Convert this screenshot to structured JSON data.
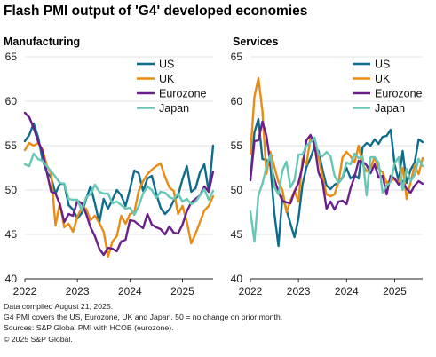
{
  "title": "Flash PMI output of 'G4' developed economies",
  "footer": [
    "Data compiled August 21, 2025.",
    "G4 PMI covers the US, Eurozone, UK and Japan. 50 = no change on prior month.",
    "Sources: S&P Global PMI with HCOB (eurozone).",
    "© 2025 S&P Global."
  ],
  "colors": {
    "US": "#106c8c",
    "UK": "#e88c14",
    "Eurozone": "#6a1f8a",
    "Japan": "#66c7b4"
  },
  "chart_data": [
    {
      "type": "line",
      "title": "Manufacturing",
      "xlabel": "",
      "ylabel": "",
      "ylim": [
        40,
        65
      ],
      "yticks": [
        40,
        45,
        50,
        55,
        60,
        65
      ],
      "xticks": [
        "2022",
        "2023",
        "2024",
        "2025"
      ],
      "x_start": "2022-01",
      "x_end": "2025-08",
      "grid": "horizontal",
      "legend": "top-right",
      "series": [
        {
          "name": "US",
          "values": [
            55.5,
            56.2,
            57.5,
            56.0,
            53.5,
            52.0,
            51.4,
            49.6,
            50.7,
            50.7,
            48.3,
            47.8,
            46.8,
            47.4,
            49.0,
            50.4,
            48.5,
            46.3,
            49.0,
            47.9,
            48.9,
            50.0,
            49.4,
            48.2,
            50.1,
            52.2,
            51.9,
            49.9,
            51.3,
            51.6,
            49.6,
            48.0,
            47.3,
            47.8,
            48.8,
            49.4,
            51.2,
            52.7,
            49.8,
            50.2,
            52.0,
            52.9,
            49.8,
            55.0
          ]
        },
        {
          "name": "UK",
          "values": [
            54.5,
            55.3,
            55.0,
            55.3,
            54.6,
            52.8,
            51.8,
            46.0,
            48.5,
            45.8,
            46.2,
            45.3,
            47.0,
            48.0,
            47.9,
            46.6,
            47.1,
            46.3,
            45.3,
            42.5,
            44.2,
            44.8,
            47.1,
            46.2,
            47.3,
            47.5,
            49.9,
            51.0,
            51.8,
            52.3,
            52.7,
            53.0,
            51.5,
            50.3,
            49.9,
            47.3,
            48.2,
            46.4,
            44.0,
            45.1,
            46.4,
            47.7,
            48.2,
            49.3
          ]
        },
        {
          "name": "Eurozone",
          "values": [
            58.7,
            58.2,
            57.0,
            55.5,
            54.4,
            52.0,
            49.8,
            49.6,
            48.4,
            46.4,
            47.3,
            47.1,
            48.8,
            48.5,
            47.3,
            45.8,
            44.8,
            43.4,
            42.7,
            43.5,
            43.4,
            43.1,
            44.2,
            44.4,
            46.6,
            46.5,
            46.1,
            45.7,
            47.3,
            46.1,
            45.8,
            45.6,
            45.0,
            45.9,
            45.2,
            45.1,
            46.1,
            47.6,
            48.6,
            49.0,
            49.4,
            50.4,
            49.8,
            52.1
          ]
        },
        {
          "name": "Japan",
          "values": [
            52.9,
            52.7,
            54.1,
            53.5,
            53.3,
            52.7,
            52.1,
            51.5,
            50.8,
            50.7,
            49.0,
            48.9,
            48.9,
            47.7,
            49.2,
            49.5,
            50.6,
            49.8,
            49.6,
            49.6,
            48.5,
            48.7,
            48.3,
            47.9,
            48.0,
            47.2,
            48.2,
            49.6,
            50.4,
            50.0,
            49.1,
            49.8,
            49.7,
            49.2,
            49.0,
            49.6,
            48.7,
            49.0,
            48.4,
            48.7,
            49.4,
            50.1,
            48.9,
            49.9
          ]
        }
      ]
    },
    {
      "type": "line",
      "title": "Services",
      "xlabel": "",
      "ylabel": "",
      "ylim": [
        40,
        65
      ],
      "yticks": [
        40,
        45,
        50,
        55,
        60,
        65
      ],
      "xticks": [
        "2022",
        "2023",
        "2024",
        "2025"
      ],
      "x_start": "2022-01",
      "x_end": "2025-08",
      "grid": "horizontal",
      "legend": "top-right",
      "series": [
        {
          "name": "US",
          "values": [
            51.2,
            56.5,
            58.0,
            53.5,
            53.4,
            52.7,
            47.3,
            43.7,
            49.3,
            47.8,
            46.2,
            44.7,
            46.8,
            50.6,
            52.6,
            53.6,
            54.9,
            54.4,
            52.3,
            50.5,
            50.1,
            50.6,
            50.8,
            51.4,
            52.5,
            51.3,
            51.7,
            51.3,
            54.8,
            55.3,
            55.0,
            55.7,
            55.2,
            56.0,
            56.1,
            56.8,
            52.9,
            51.0,
            54.4,
            50.8,
            52.3,
            53.1,
            55.7,
            55.4
          ]
        },
        {
          "name": "UK",
          "values": [
            54.1,
            60.5,
            62.6,
            58.9,
            51.8,
            54.3,
            52.6,
            50.9,
            50.0,
            47.5,
            48.8,
            49.9,
            48.7,
            53.5,
            52.9,
            55.9,
            55.2,
            53.7,
            51.5,
            49.5,
            49.3,
            49.5,
            50.9,
            53.7,
            54.3,
            53.8,
            53.1,
            55.0,
            52.9,
            52.1,
            52.5,
            53.7,
            52.4,
            52.0,
            50.8,
            51.1,
            51.2,
            50.8,
            52.5,
            49.0,
            50.9,
            52.8,
            51.8,
            53.6
          ]
        },
        {
          "name": "Eurozone",
          "values": [
            51.1,
            55.5,
            55.6,
            57.7,
            56.1,
            53.0,
            51.2,
            49.8,
            48.8,
            48.6,
            48.5,
            49.8,
            50.8,
            52.7,
            55.6,
            56.2,
            55.1,
            52.0,
            50.9,
            47.9,
            48.7,
            47.8,
            48.7,
            48.8,
            48.4,
            50.2,
            51.5,
            53.3,
            53.2,
            52.8,
            51.9,
            52.9,
            51.4,
            51.6,
            49.5,
            51.6,
            51.3,
            50.6,
            51.0,
            50.1,
            49.7,
            50.5,
            51.0,
            50.7
          ]
        },
        {
          "name": "Japan",
          "values": [
            47.6,
            44.2,
            49.4,
            50.7,
            52.6,
            54.0,
            50.3,
            49.5,
            52.2,
            53.2,
            50.3,
            51.1,
            54.0,
            54.0,
            55.0,
            55.4,
            55.9,
            54.0,
            53.8,
            54.3,
            53.8,
            51.6,
            50.8,
            51.5,
            53.1,
            52.9,
            54.1,
            53.6,
            53.8,
            49.4,
            53.7,
            53.7,
            53.1,
            49.7,
            50.5,
            50.9,
            53.0,
            53.7,
            50.0,
            52.4,
            51.0,
            51.7,
            53.5,
            52.7
          ]
        }
      ]
    }
  ]
}
